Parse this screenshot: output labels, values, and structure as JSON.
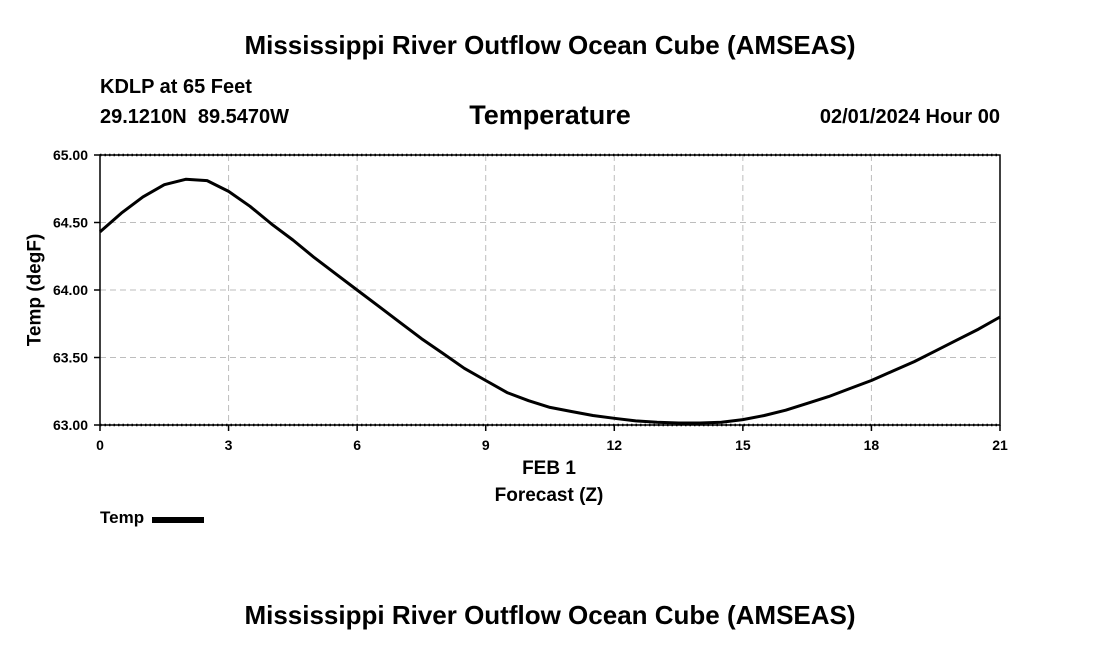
{
  "header": {
    "title": "Mississippi River Outflow Ocean Cube (AMSEAS)",
    "station": "KDLP at 65 Feet",
    "coords": "29.1210N  89.5470W",
    "variable": "Temperature",
    "datetime": "02/01/2024 Hour 00"
  },
  "footer": {
    "title": "Mississippi River Outflow Ocean Cube (AMSEAS)"
  },
  "chart_data": {
    "type": "line",
    "title": "Temperature",
    "xlabel": "Forecast (Z)",
    "xsublabel": "FEB 1",
    "ylabel": "Temp (degF)",
    "xlim": [
      0,
      21
    ],
    "ylim": [
      63.0,
      65.0
    ],
    "xticks": [
      "0",
      "3",
      "6",
      "9",
      "12",
      "15",
      "18",
      "21"
    ],
    "yticks": [
      "63.00",
      "63.50",
      "64.00",
      "64.50",
      "65.00"
    ],
    "grid": true,
    "legend_placement": "bottom-left",
    "series": [
      {
        "name": "Temp",
        "color": "#000000",
        "x": [
          0,
          0.5,
          1,
          1.5,
          2,
          2.5,
          3,
          3.5,
          4,
          4.5,
          5,
          5.5,
          6,
          6.5,
          7,
          7.5,
          8,
          8.5,
          9,
          9.5,
          10,
          10.5,
          11,
          11.5,
          12,
          12.5,
          13,
          13.5,
          14,
          14.5,
          15,
          15.5,
          16,
          16.5,
          17,
          17.5,
          18,
          18.5,
          19,
          19.5,
          20,
          20.5,
          21
        ],
        "values": [
          64.43,
          64.57,
          64.69,
          64.78,
          64.82,
          64.81,
          64.73,
          64.62,
          64.49,
          64.37,
          64.24,
          64.12,
          64.0,
          63.88,
          63.76,
          63.64,
          63.53,
          63.42,
          63.33,
          63.24,
          63.18,
          63.13,
          63.1,
          63.07,
          63.05,
          63.03,
          63.02,
          63.015,
          63.015,
          63.02,
          63.04,
          63.07,
          63.11,
          63.16,
          63.21,
          63.27,
          63.33,
          63.4,
          63.47,
          63.55,
          63.63,
          63.71,
          63.8
        ]
      }
    ]
  }
}
